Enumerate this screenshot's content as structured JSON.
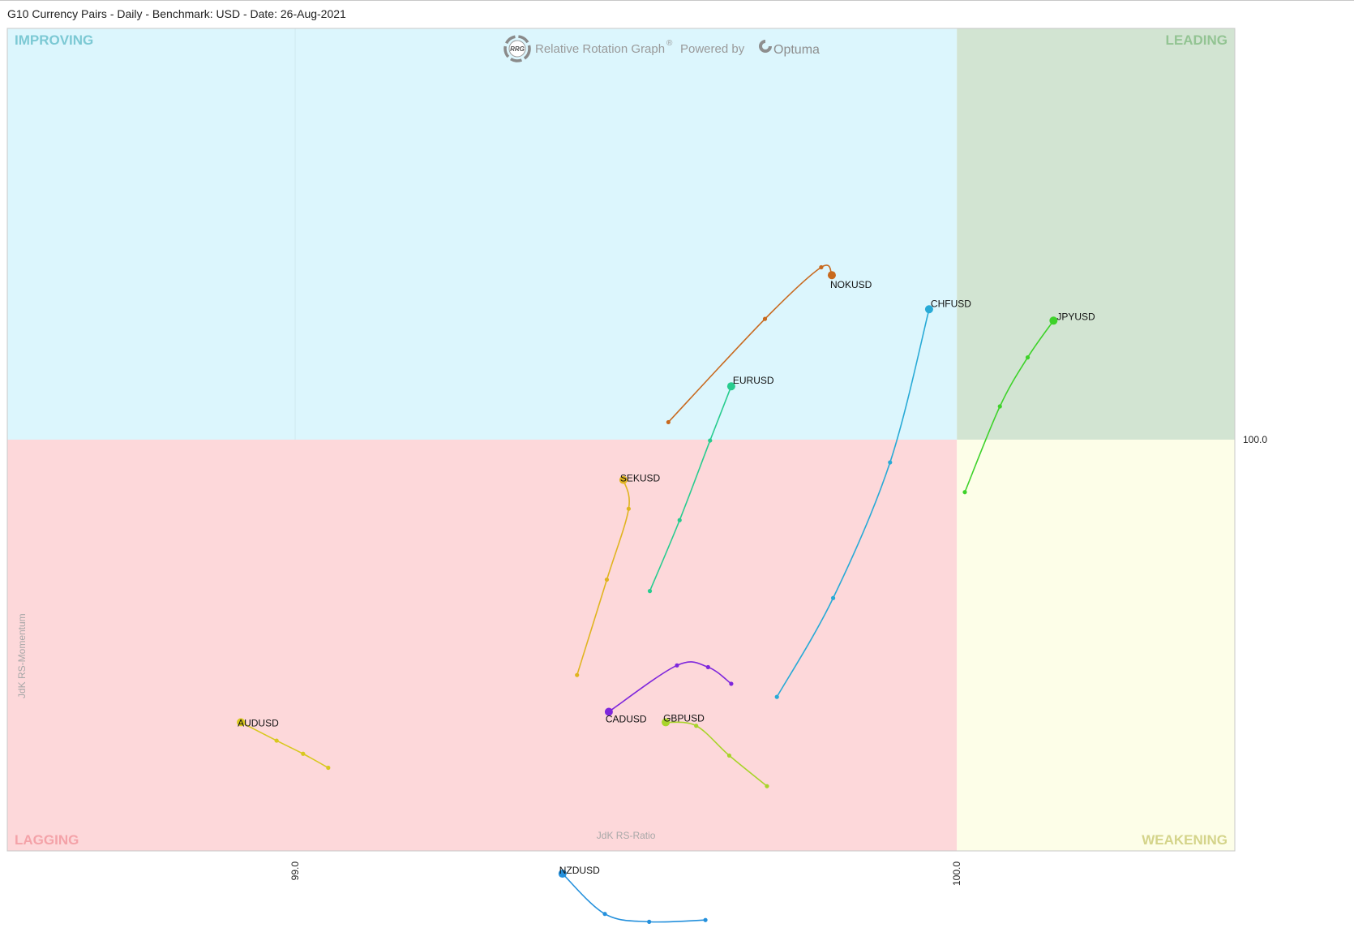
{
  "header": {
    "title": "G10 Currency Pairs - Daily - Benchmark: USD - Date: 26-Aug-2021"
  },
  "watermark": {
    "logo_text": "RRG",
    "text": "Relative Rotation Graph",
    "registered": "®",
    "powered_by": "Powered by",
    "brand": "Optuma"
  },
  "colors": {
    "improving": "#dcf6fd",
    "leading": "#d2e4d2",
    "lagging": "#fdd8da",
    "weakening": "#fdfee8",
    "improving_label": "#7cc9d4",
    "leading_label": "#93c493",
    "lagging_label": "#f4a2a8",
    "weakening_label": "#d4d48a"
  },
  "chart_data": {
    "type": "scatter",
    "subtype": "relative-rotation-graph",
    "title": "G10 Currency Pairs - Daily - Benchmark: USD - Date: 26-Aug-2021",
    "xlabel": "JdK RS-Ratio",
    "ylabel": "JdK RS-Momentum",
    "xlim": [
      98.565,
      100.42
    ],
    "ylim": [
      99.53,
      100.47
    ],
    "center": {
      "x": 100.0,
      "y": 100.0
    },
    "x_ticks": [
      "99.0",
      "100.0"
    ],
    "x_tick_values": [
      99.0,
      100.0
    ],
    "y_ticks": [
      "100.0"
    ],
    "y_tick_values": [
      100.0
    ],
    "grid": true,
    "quadrants": {
      "top_left": "IMPROVING",
      "top_right": "LEADING",
      "bottom_left": "LAGGING",
      "bottom_right": "WEAKENING"
    },
    "series": [
      {
        "name": "NOKUSD",
        "color": "#c8691e",
        "points": [
          [
            99.564,
            100.02
          ],
          [
            99.71,
            100.138
          ],
          [
            99.795,
            100.197
          ],
          [
            99.811,
            100.188
          ]
        ]
      },
      {
        "name": "CHFUSD",
        "color": "#28aad6",
        "points": [
          [
            99.728,
            99.706
          ],
          [
            99.813,
            99.819
          ],
          [
            99.899,
            99.974
          ],
          [
            99.958,
            100.149
          ]
        ]
      },
      {
        "name": "JPYUSD",
        "color": "#3ed22a",
        "points": [
          [
            100.012,
            99.94
          ],
          [
            100.065,
            100.038
          ],
          [
            100.107,
            100.094
          ],
          [
            100.146,
            100.136
          ]
        ]
      },
      {
        "name": "EURUSD",
        "color": "#27cc8f",
        "points": [
          [
            99.536,
            99.827
          ],
          [
            99.581,
            99.908
          ],
          [
            99.627,
            99.999
          ],
          [
            99.659,
            100.061
          ]
        ]
      },
      {
        "name": "SEKUSD",
        "color": "#e0b420",
        "points": [
          [
            99.426,
            99.731
          ],
          [
            99.471,
            99.84
          ],
          [
            99.504,
            99.921
          ],
          [
            99.496,
            99.954
          ]
        ]
      },
      {
        "name": "CADUSD",
        "color": "#7e26dc",
        "points": [
          [
            99.659,
            99.721
          ],
          [
            99.624,
            99.74
          ],
          [
            99.577,
            99.742
          ],
          [
            99.474,
            99.689
          ]
        ]
      },
      {
        "name": "GBPUSD",
        "color": "#a8d42a",
        "points": [
          [
            99.713,
            99.604
          ],
          [
            99.656,
            99.639
          ],
          [
            99.606,
            99.673
          ],
          [
            99.56,
            99.677
          ]
        ]
      },
      {
        "name": "AUDUSD",
        "color": "#d8c81e",
        "points": [
          [
            99.05,
            99.625
          ],
          [
            99.012,
            99.641
          ],
          [
            98.972,
            99.656
          ],
          [
            98.918,
            99.677
          ]
        ]
      },
      {
        "name": "NZDUSD",
        "color": "#2490dc",
        "points": [
          [
            99.62,
            99.451
          ],
          [
            99.535,
            99.449
          ],
          [
            99.468,
            99.458
          ],
          [
            99.404,
            99.504
          ]
        ]
      }
    ]
  }
}
